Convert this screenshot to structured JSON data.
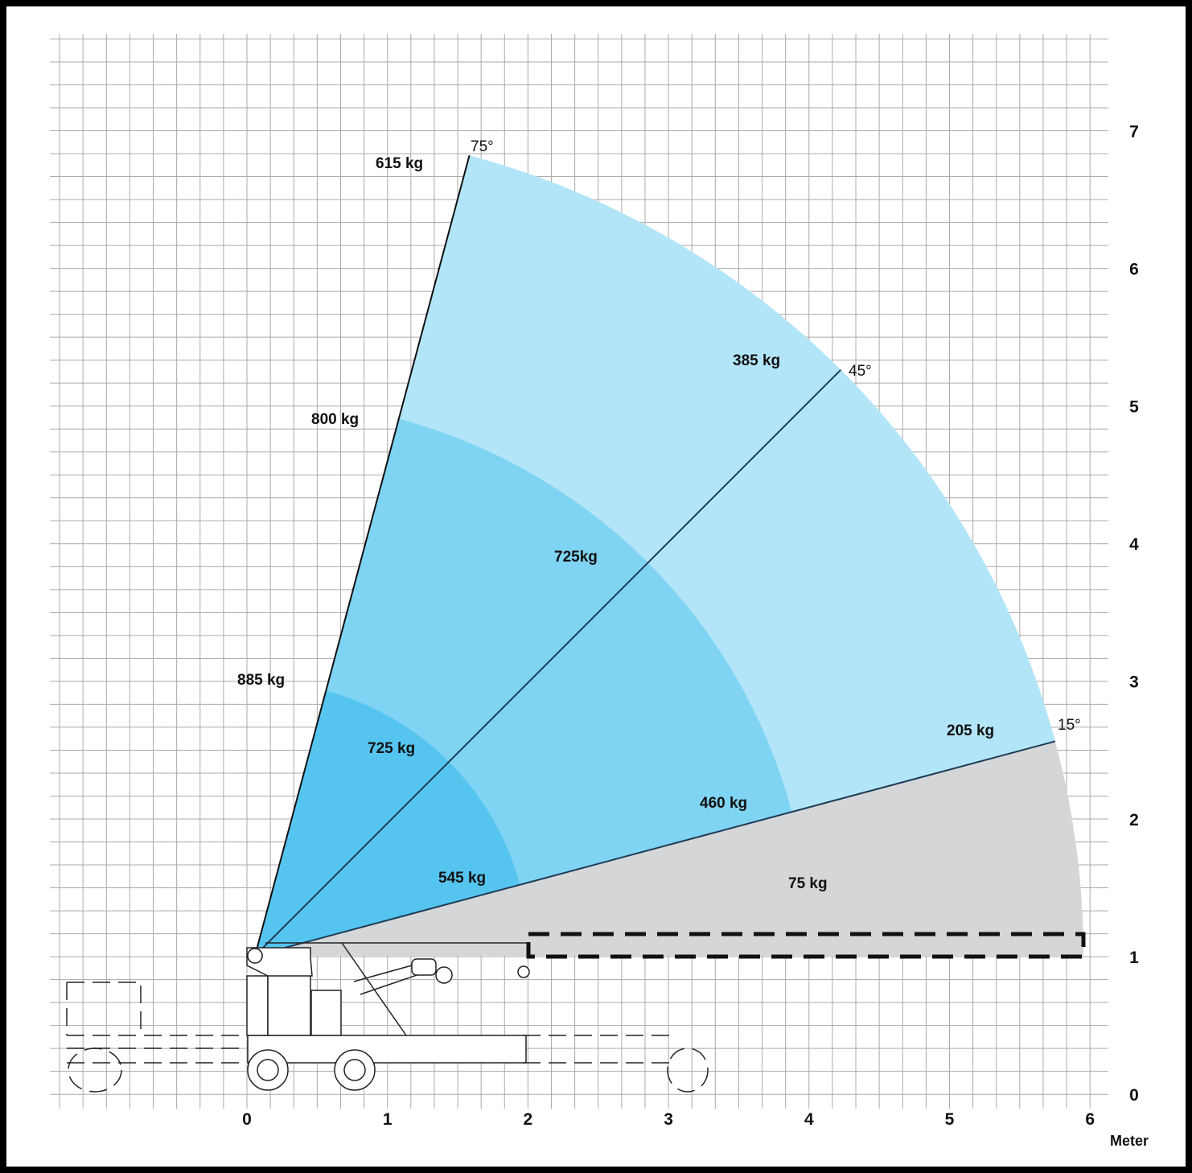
{
  "axes": {
    "x_ticks": [
      "0",
      "1",
      "2",
      "3",
      "4",
      "5",
      "6"
    ],
    "y_ticks": [
      "0",
      "1",
      "2",
      "3",
      "4",
      "5",
      "6",
      "7"
    ],
    "x_unit": "Meter"
  },
  "angles": [
    "75°",
    "45°",
    "15°"
  ],
  "loads": [
    "615 kg",
    "800 kg",
    "885 kg",
    "725 kg",
    "545 kg",
    "725kg",
    "460 kg",
    "385 kg",
    "205 kg",
    "75 kg"
  ]
}
